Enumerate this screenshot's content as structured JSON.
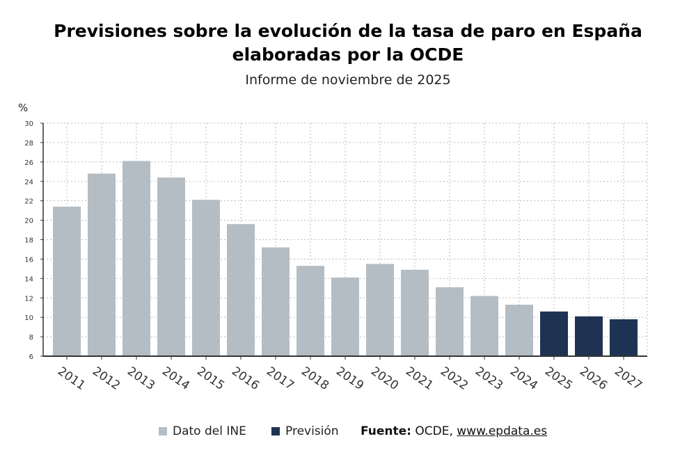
{
  "chart_data": {
    "type": "bar",
    "title": "Previsiones sobre la evolución de la tasa de paro en España elaboradas por la OCDE",
    "subtitle": "Informe de noviembre de 2025",
    "ylabel": "%",
    "ylim": [
      6,
      30
    ],
    "yticks": [
      6,
      8,
      10,
      12,
      14,
      16,
      18,
      20,
      22,
      24,
      26,
      28,
      30
    ],
    "grid": true,
    "categories": [
      "2011",
      "2012",
      "2013",
      "2014",
      "2015",
      "2016",
      "2017",
      "2018",
      "2019",
      "2020",
      "2021",
      "2022",
      "2023",
      "2024",
      "2025",
      "2026",
      "2027"
    ],
    "values": [
      21.4,
      24.8,
      26.1,
      24.4,
      22.1,
      19.6,
      17.2,
      15.3,
      14.1,
      15.5,
      14.9,
      13.1,
      12.2,
      11.3,
      10.6,
      10.1,
      9.8
    ],
    "series_type": [
      "Dato del INE",
      "Dato del INE",
      "Dato del INE",
      "Dato del INE",
      "Dato del INE",
      "Dato del INE",
      "Dato del INE",
      "Dato del INE",
      "Dato del INE",
      "Dato del INE",
      "Dato del INE",
      "Dato del INE",
      "Dato del INE",
      "Dato del INE",
      "Previsión",
      "Previsión",
      "Previsión"
    ],
    "legend": [
      {
        "name": "Dato del INE",
        "color": "#b4bdc3"
      },
      {
        "name": "Previsión",
        "color": "#1e3352"
      }
    ],
    "legend_placement": "bottom"
  },
  "source": {
    "label": "Fuente:",
    "text": "OCDE,",
    "link": "www.epdata.es"
  }
}
